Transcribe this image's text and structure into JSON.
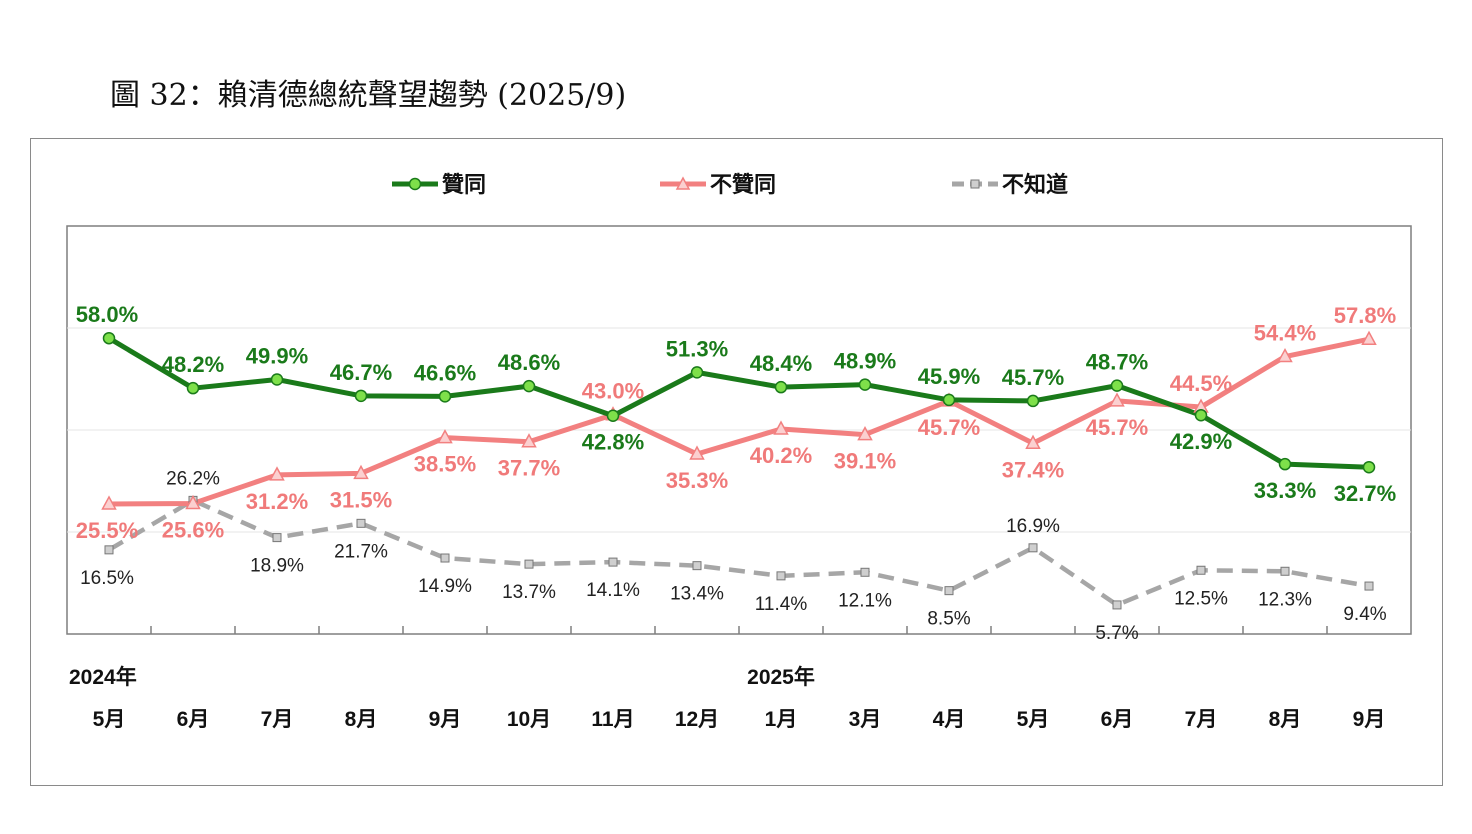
{
  "figure_title": "圖 32：賴清德總統聲望趨勢 (2025/9)",
  "legend": [
    {
      "label": "贊同",
      "color": "#1a7a1a",
      "marker": "circle"
    },
    {
      "label": "不贊同",
      "color": "#f28080",
      "marker": "triangle"
    },
    {
      "label": "不知道",
      "color": "#a6a6a6",
      "marker": "square"
    }
  ],
  "year_labels": [
    "2024年",
    "2025年"
  ],
  "chart_data": {
    "type": "line",
    "categories": [
      "5月",
      "6月",
      "7月",
      "8月",
      "9月",
      "10月",
      "11月",
      "12月",
      "1月",
      "3月",
      "4月",
      "5月",
      "6月",
      "7月",
      "8月",
      "9月"
    ],
    "series": [
      {
        "name": "贊同",
        "color": "#1a7a1a",
        "values": [
          58.0,
          48.2,
          49.9,
          46.7,
          46.6,
          48.6,
          42.8,
          51.3,
          48.4,
          48.9,
          45.9,
          45.7,
          48.7,
          42.9,
          33.3,
          32.7
        ],
        "labels": [
          "58.0%",
          "48.2%",
          "49.9%",
          "46.7%",
          "46.6%",
          "48.6%",
          "42.8%",
          "51.3%",
          "48.4%",
          "48.9%",
          "45.9%",
          "45.7%",
          "48.7%",
          "42.9%",
          "33.3%",
          "32.7%"
        ]
      },
      {
        "name": "不贊同",
        "color": "#f28080",
        "values": [
          25.5,
          25.6,
          31.2,
          31.5,
          38.5,
          37.7,
          43.0,
          35.3,
          40.2,
          39.1,
          45.7,
          37.4,
          45.7,
          44.5,
          54.4,
          57.8
        ],
        "labels": [
          "25.5%",
          "25.6%",
          "31.2%",
          "31.5%",
          "38.5%",
          "37.7%",
          "43.0%",
          "35.3%",
          "40.2%",
          "39.1%",
          "45.7%",
          "37.4%",
          "45.7%",
          "44.5%",
          "54.4%",
          "57.8%"
        ]
      },
      {
        "name": "不知道",
        "color": "#a6a6a6",
        "values": [
          16.5,
          26.2,
          18.9,
          21.7,
          14.9,
          13.7,
          14.1,
          13.4,
          11.4,
          12.1,
          8.5,
          16.9,
          5.7,
          12.5,
          12.3,
          9.4
        ],
        "labels": [
          "16.5%",
          "26.2%",
          "18.9%",
          "21.7%",
          "14.9%",
          "13.7%",
          "14.1%",
          "13.4%",
          "11.4%",
          "12.1%",
          "8.5%",
          "16.9%",
          "5.7%",
          "12.5%",
          "12.3%",
          "9.4%"
        ]
      }
    ],
    "ylim": [
      0,
      80
    ],
    "grid": true
  }
}
